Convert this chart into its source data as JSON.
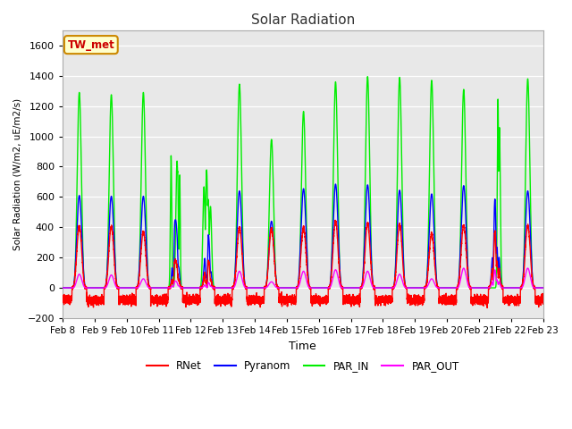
{
  "title": "Solar Radiation",
  "ylabel": "Solar Radiation (W/m2, uE/m2/s)",
  "xlabel": "Time",
  "ylim": [
    -200,
    1700
  ],
  "yticks": [
    -200,
    0,
    200,
    400,
    600,
    800,
    1000,
    1200,
    1400,
    1600
  ],
  "xtick_labels": [
    "Feb 8",
    "Feb 9",
    "Feb 10",
    "Feb 11",
    "Feb 12",
    "Feb 13",
    "Feb 14",
    "Feb 15",
    "Feb 16",
    "Feb 17",
    "Feb 18",
    "Feb 19",
    "Feb 20",
    "Feb 21",
    "Feb 22",
    "Feb 23"
  ],
  "station_label": "TW_met",
  "colors": {
    "RNet": "#ff0000",
    "Pyranom": "#0000ff",
    "PAR_IN": "#00ee00",
    "PAR_OUT": "#ff00ff"
  },
  "fig_bg": "#ffffff",
  "plot_bg": "#e8e8e8",
  "grid_color": "#ffffff",
  "n_days": 15,
  "par_in_peaks": [
    1290,
    1275,
    1290,
    980,
    860,
    1345,
    980,
    1165,
    1360,
    1395,
    1390,
    1370,
    1310,
    1420,
    1380
  ],
  "pyranom_peaks": [
    610,
    605,
    605,
    450,
    390,
    640,
    440,
    655,
    685,
    680,
    645,
    620,
    675,
    640,
    640
  ],
  "rnet_peaks": [
    405,
    405,
    370,
    180,
    200,
    400,
    390,
    400,
    440,
    425,
    420,
    360,
    415,
    410,
    410
  ],
  "par_out_peaks": [
    90,
    85,
    60,
    45,
    40,
    110,
    40,
    110,
    120,
    110,
    90,
    60,
    130,
    130,
    130
  ],
  "cloudy_days": [
    3,
    4,
    13
  ],
  "rnet_night_mean": -80,
  "rnet_night_std": 15,
  "linewidth": 1.0
}
